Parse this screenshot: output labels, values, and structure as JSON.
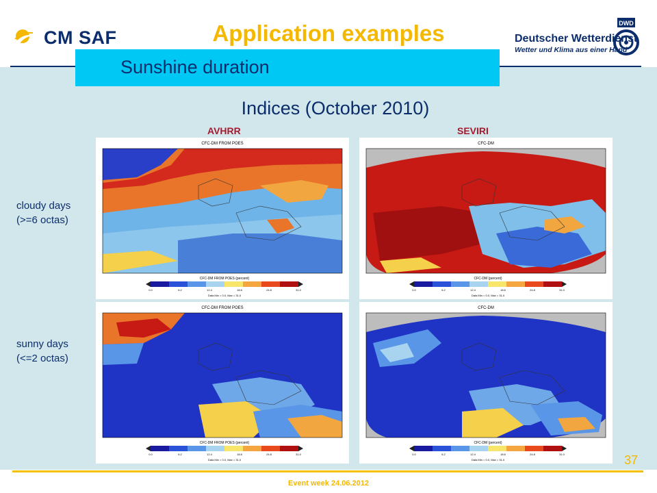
{
  "header": {
    "logo_text": "CM SAF",
    "title": "Application examples",
    "dwd_name": "Deutscher Wetterdienst",
    "dwd_tagline": "Wetter und Klima aus einer Hand",
    "dwd_emblem_text": "DWD"
  },
  "subtitle": "Sunshine duration",
  "section_title": "Indices (October 2010)",
  "columns": {
    "avhrr": "AVHRR",
    "seviri": "SEVIRI"
  },
  "rows": {
    "cloudy_line1": "cloudy days",
    "cloudy_line2": "(>=6 octas)",
    "sunny_line1": "sunny days",
    "sunny_line2": "(<=2 octas)"
  },
  "maps": {
    "m1": {
      "title": "CFC-DM FROM POES",
      "legend": "CFC-DM FROM POES (percent)",
      "stats": "Data Min = 0.0, Max = 31.0"
    },
    "m2": {
      "title": "CFC-DM",
      "legend": "CFC-DM (percent)",
      "stats": "Data Min = 0.0, Max = 31.0"
    },
    "m3": {
      "title": "CFC-DM FROM POES",
      "legend": "CFC-DM FROM POES (percent)",
      "stats": "Data Min = 0.0, Max = 31.0"
    },
    "m4": {
      "title": "CFC-DM",
      "legend": "CFC-DM (percent)",
      "stats": "Data Min = 0.0, Max = 31.0"
    },
    "ticks": [
      "0.0",
      "6.2",
      "12.4",
      "18.6",
      "24.8",
      "31.0"
    ]
  },
  "colors": {
    "title_gold": "#f5b800",
    "navy": "#0b2d6b",
    "cyan_bar": "#00c8f5",
    "panel": "#d2e7eb"
  },
  "footer": {
    "event": "Event week 24.06.2012",
    "page": "37"
  }
}
